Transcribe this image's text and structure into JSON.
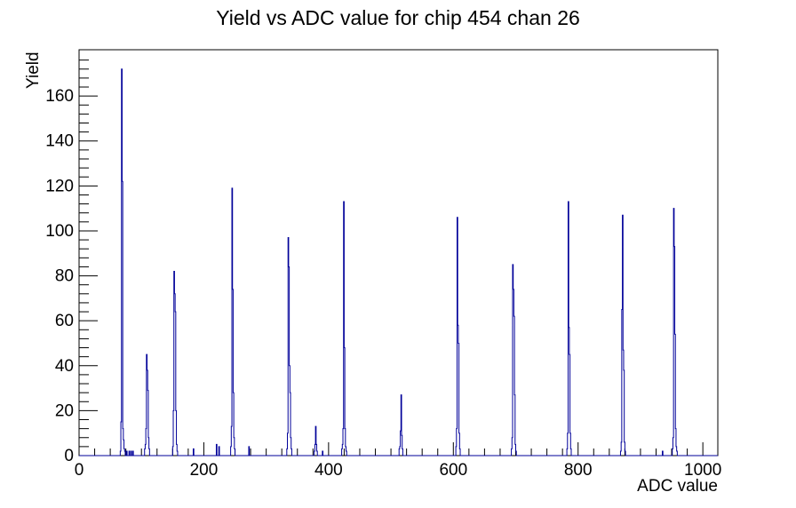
{
  "chart_data": {
    "type": "line",
    "style": "step-histogram",
    "title": "Yield vs ADC value for chip 454 chan 26",
    "xlabel": "ADC value",
    "ylabel": "Yield",
    "xlim": [
      0,
      1024
    ],
    "ylim": [
      0,
      180.6
    ],
    "grid": false,
    "legend": false,
    "line_color": "#000099",
    "axis_color": "#000000",
    "background_color": "#ffffff",
    "bin_width": 1,
    "x_major_ticks": [
      0,
      200,
      400,
      600,
      800,
      1000
    ],
    "x_major_tick_labels": [
      "0",
      "200",
      "400",
      "600",
      "800",
      "1000"
    ],
    "x_minor_tick_step": 25,
    "y_major_ticks": [
      0,
      20,
      40,
      60,
      80,
      100,
      120,
      140,
      160
    ],
    "y_major_tick_labels": [
      "0",
      "20",
      "40",
      "60",
      "80",
      "100",
      "120",
      "140",
      "160"
    ],
    "y_minor_tick_step": 4,
    "bins": [
      [
        66,
        2
      ],
      [
        67,
        15
      ],
      [
        68,
        172
      ],
      [
        69,
        122
      ],
      [
        70,
        12
      ],
      [
        71,
        7
      ],
      [
        72,
        3
      ],
      [
        73,
        2
      ],
      [
        76,
        2
      ],
      [
        80,
        2
      ],
      [
        83,
        2
      ],
      [
        86,
        2
      ],
      [
        105,
        3
      ],
      [
        106,
        5
      ],
      [
        107,
        12
      ],
      [
        108,
        45
      ],
      [
        109,
        38
      ],
      [
        110,
        29
      ],
      [
        111,
        8
      ],
      [
        112,
        3
      ],
      [
        150,
        4
      ],
      [
        151,
        20
      ],
      [
        152,
        82
      ],
      [
        153,
        72
      ],
      [
        154,
        64
      ],
      [
        155,
        20
      ],
      [
        156,
        5
      ],
      [
        157,
        2
      ],
      [
        183,
        3
      ],
      [
        220,
        5
      ],
      [
        224,
        4
      ],
      [
        243,
        4
      ],
      [
        244,
        13
      ],
      [
        245,
        119
      ],
      [
        246,
        74
      ],
      [
        247,
        28
      ],
      [
        248,
        8
      ],
      [
        249,
        3
      ],
      [
        272,
        4
      ],
      [
        333,
        3
      ],
      [
        334,
        10
      ],
      [
        335,
        97
      ],
      [
        336,
        84
      ],
      [
        337,
        40
      ],
      [
        338,
        28
      ],
      [
        339,
        8
      ],
      [
        340,
        3
      ],
      [
        377,
        2
      ],
      [
        378,
        5
      ],
      [
        379,
        13
      ],
      [
        380,
        5
      ],
      [
        381,
        2
      ],
      [
        390,
        2
      ],
      [
        421,
        3
      ],
      [
        422,
        5
      ],
      [
        423,
        12
      ],
      [
        424,
        113
      ],
      [
        425,
        48
      ],
      [
        426,
        12
      ],
      [
        427,
        4
      ],
      [
        428,
        2
      ],
      [
        513,
        3
      ],
      [
        514,
        4
      ],
      [
        515,
        11
      ],
      [
        516,
        27
      ],
      [
        517,
        9
      ],
      [
        518,
        3
      ],
      [
        604,
        4
      ],
      [
        605,
        12
      ],
      [
        606,
        106
      ],
      [
        607,
        58
      ],
      [
        608,
        50
      ],
      [
        609,
        10
      ],
      [
        610,
        3
      ],
      [
        693,
        3
      ],
      [
        694,
        8
      ],
      [
        695,
        85
      ],
      [
        696,
        74
      ],
      [
        697,
        62
      ],
      [
        698,
        27
      ],
      [
        699,
        5
      ],
      [
        700,
        2
      ],
      [
        782,
        3
      ],
      [
        783,
        10
      ],
      [
        784,
        113
      ],
      [
        785,
        57
      ],
      [
        786,
        45
      ],
      [
        787,
        10
      ],
      [
        788,
        3
      ],
      [
        868,
        2
      ],
      [
        869,
        6
      ],
      [
        870,
        65
      ],
      [
        871,
        107
      ],
      [
        872,
        47
      ],
      [
        873,
        38
      ],
      [
        874,
        6
      ],
      [
        875,
        2
      ],
      [
        935,
        2
      ],
      [
        951,
        3
      ],
      [
        952,
        8
      ],
      [
        953,
        110
      ],
      [
        954,
        93
      ],
      [
        955,
        54
      ],
      [
        956,
        12
      ],
      [
        957,
        4
      ],
      [
        958,
        2
      ]
    ]
  }
}
